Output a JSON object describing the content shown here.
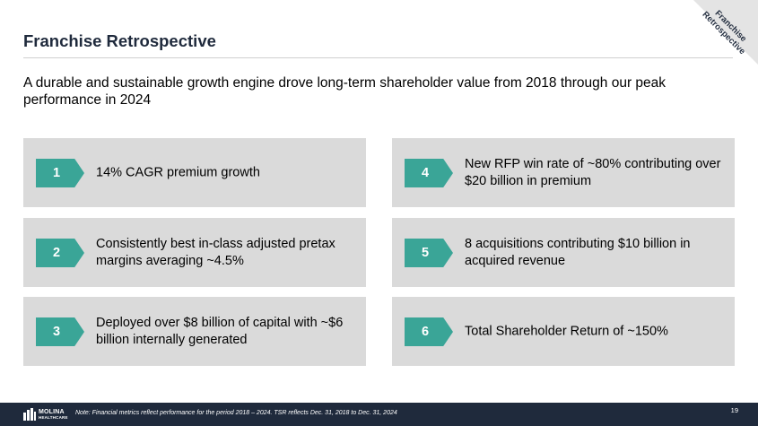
{
  "header": {
    "title": "Franchise Retrospective",
    "corner_label": "Franchise Retrospective"
  },
  "subtitle": "A durable and sustainable growth engine drove long-term shareholder value from 2018 through our peak performance in 2024",
  "cards": [
    {
      "number": "1",
      "text": "14% CAGR premium growth"
    },
    {
      "number": "2",
      "text": "Consistently best in-class adjusted pretax margins averaging ~4.5%"
    },
    {
      "number": "3",
      "text": "Deployed over $8 billion of capital with ~$6 billion internally generated"
    },
    {
      "number": "4",
      "text": "New RFP win rate of ~80% contributing over $20 billion in premium"
    },
    {
      "number": "5",
      "text": "8 acquisitions contributing $10 billion in acquired revenue"
    },
    {
      "number": "6",
      "text": "Total Shareholder Return of ~150%"
    }
  ],
  "footer": {
    "logo_text_line1": "MOLINA",
    "logo_text_line2": "HEALTHCARE",
    "note": "Note: Financial metrics reflect performance for the period 2018 – 2024. TSR reflects Dec. 31, 2018 to Dec. 31, 2024",
    "page_number": "19"
  },
  "colors": {
    "badge": "#3aa597",
    "card_bg": "#dadada",
    "title": "#1f2a3c",
    "footer_bg": "#1f2a3c"
  }
}
